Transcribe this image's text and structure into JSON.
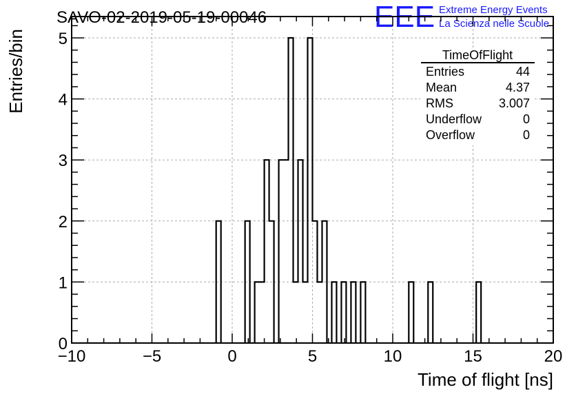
{
  "chart_data": {
    "type": "bar",
    "title": "SAVO-02-2019-05-19-00046",
    "xlabel": "Time of flight [ns]",
    "ylabel": "Entries/bin",
    "xlim": [
      -10,
      20
    ],
    "ylim": [
      0,
      5.35
    ],
    "xticks": [
      "−10",
      "−5",
      "0",
      "5",
      "10",
      "15",
      "20"
    ],
    "yticks": [
      "0",
      "1",
      "2",
      "3",
      "4",
      "5"
    ],
    "grid": true,
    "bin_width": 0.3,
    "bins": [
      {
        "x": -1.0,
        "y": 2
      },
      {
        "x": 0.8,
        "y": 2
      },
      {
        "x": 1.4,
        "y": 1
      },
      {
        "x": 1.7,
        "y": 1
      },
      {
        "x": 2.0,
        "y": 3
      },
      {
        "x": 2.3,
        "y": 2
      },
      {
        "x": 2.9,
        "y": 3
      },
      {
        "x": 3.2,
        "y": 3
      },
      {
        "x": 3.5,
        "y": 5
      },
      {
        "x": 3.8,
        "y": 1
      },
      {
        "x": 4.1,
        "y": 3
      },
      {
        "x": 4.4,
        "y": 1
      },
      {
        "x": 4.7,
        "y": 5
      },
      {
        "x": 5.0,
        "y": 2
      },
      {
        "x": 5.3,
        "y": 1
      },
      {
        "x": 5.6,
        "y": 2
      },
      {
        "x": 6.2,
        "y": 1
      },
      {
        "x": 6.8,
        "y": 1
      },
      {
        "x": 7.4,
        "y": 1
      },
      {
        "x": 8.0,
        "y": 1
      },
      {
        "x": 11.0,
        "y": 1
      },
      {
        "x": 12.2,
        "y": 1
      },
      {
        "x": 15.2,
        "y": 1
      }
    ]
  },
  "stats_box": {
    "title": "TimeOfFlight",
    "rows": [
      {
        "label": "Entries",
        "value": "44"
      },
      {
        "label": "Mean",
        "value": "4.37"
      },
      {
        "label": "RMS",
        "value": "3.007"
      },
      {
        "label": "Underflow",
        "value": "0"
      },
      {
        "label": "Overflow",
        "value": "0"
      }
    ]
  },
  "logo": {
    "mark": "EEE",
    "line1": "Extreme Energy Events",
    "line2": "La Scienza nelle Scuole",
    "color": "#1a1aff"
  },
  "colors": {
    "histogram": "#000000",
    "grid": "#aaaaaa",
    "frame": "#000000"
  }
}
